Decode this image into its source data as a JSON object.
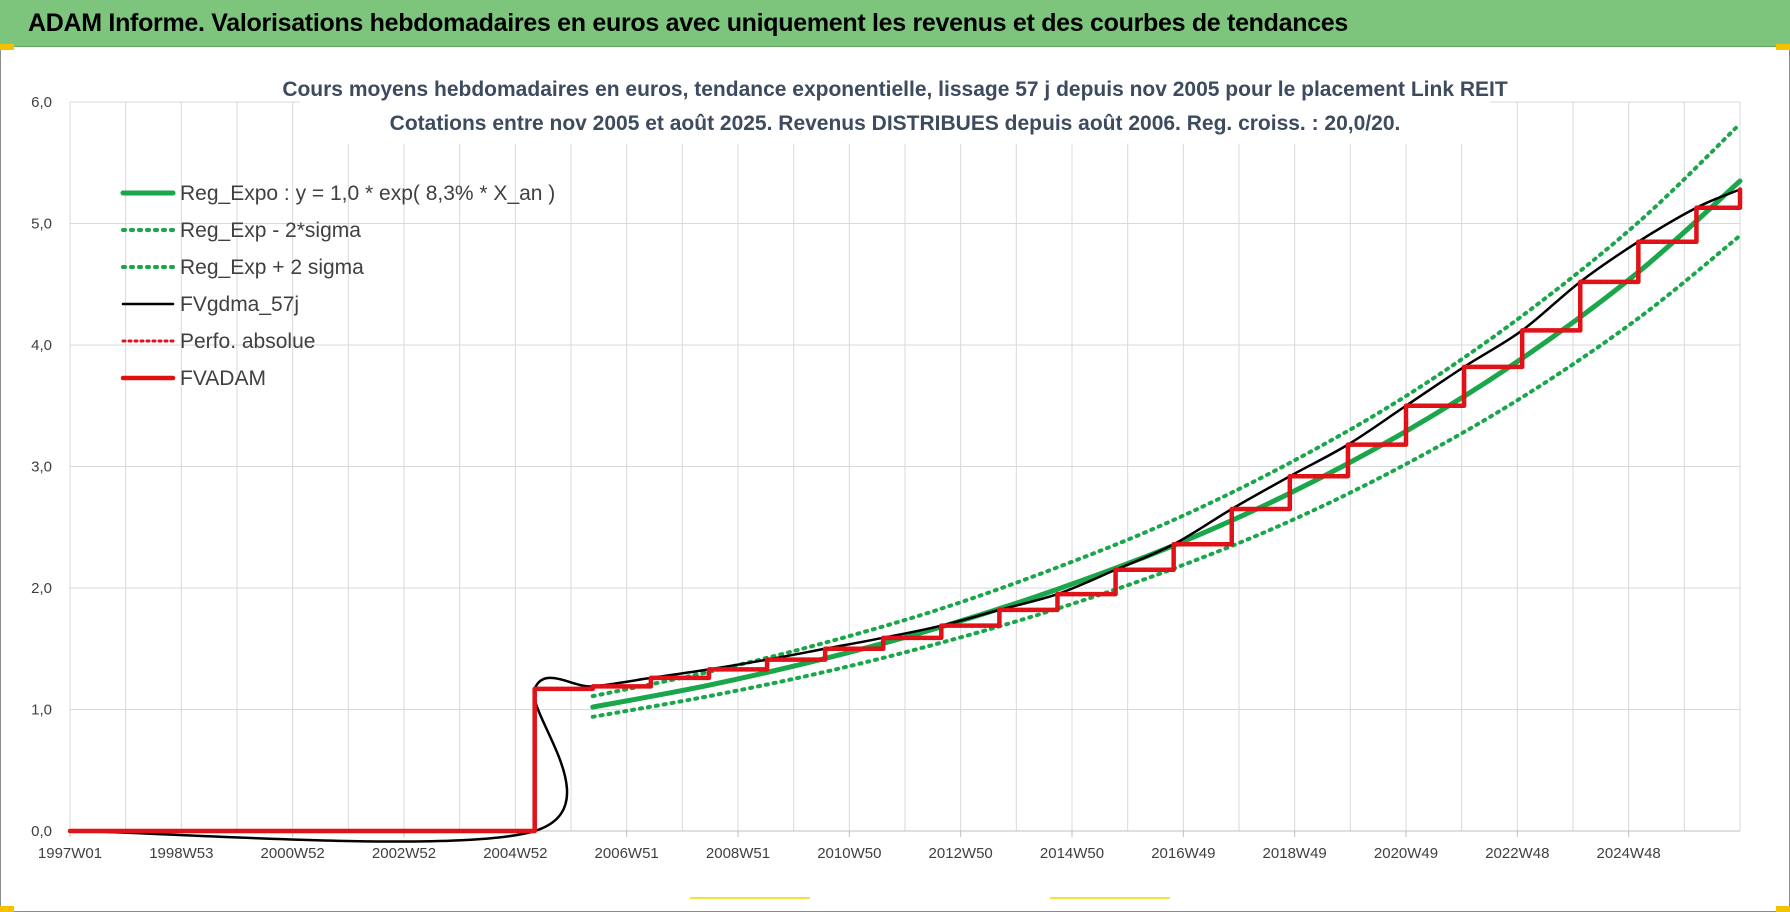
{
  "header": {
    "title": "ADAM Informe. Valorisations hebdomadaires en euros avec uniquement les revenus et des courbes de tendances"
  },
  "colors": {
    "banner": "#7dc47d",
    "trend_green": "#1aa64a",
    "fvgdma_black": "#000000",
    "perf_red": "#e0141e",
    "fvadam_red": "#e01010",
    "grid": "#d9d9d9"
  },
  "chart_data": {
    "type": "line",
    "title": [
      "Cours moyens hebdomadaires en euros, tendance exponentielle, lissage 57 j depuis nov 2005  pour le placement Link REIT",
      "Cotations entre nov 2005 et août 2025.  Revenus DISTRIBUES depuis août 2006. Reg.  croiss. : 20,0/20."
    ],
    "xlabel": "",
    "ylabel": "",
    "x_tick_labels": [
      "1997W01",
      "1998W53",
      "2000W52",
      "2002W52",
      "2004W52",
      "2006W51",
      "2008W51",
      "2010W50",
      "2012W50",
      "2014W50",
      "2016W49",
      "2018W49",
      "2020W49",
      "2022W48",
      "2024W48"
    ],
    "y_tick_labels": [
      "0,0",
      "1,0",
      "2,0",
      "3,0",
      "4,0",
      "5,0",
      "6,0"
    ],
    "x_unit": "year",
    "xlim": [
      1997.0,
      2025.75
    ],
    "ylim": [
      0,
      6
    ],
    "grid": true,
    "legend_position": "top-left",
    "legend": [
      {
        "label": "Reg_Expo : y = 1,0 * exp( 8,3% *  X_an )",
        "style": "solid",
        "color": "#1aa64a"
      },
      {
        "label": "Reg_Exp - 2*sigma",
        "style": "dotted",
        "color": "#1aa64a"
      },
      {
        "label": "Reg_Exp + 2 sigma",
        "style": "dotted",
        "color": "#1aa64a"
      },
      {
        "label": "FVgdma_57j",
        "style": "solid",
        "color": "#000000"
      },
      {
        "label": "Perfo. absolue",
        "style": "dotted",
        "color": "#e0141e"
      },
      {
        "label": "FVADAM",
        "style": "solid-thick",
        "color": "#e01010"
      }
    ],
    "series": [
      {
        "name": "Reg_Expo : y = 1,0 * exp( 8,3% *  X_an )",
        "x": [
          2006.0,
          2008.0,
          2010.0,
          2012.0,
          2014.0,
          2016.0,
          2018.0,
          2020.0,
          2022.0,
          2024.0,
          2025.75
        ],
        "y": [
          1.02,
          1.2,
          1.42,
          1.68,
          1.99,
          2.35,
          2.78,
          3.29,
          3.89,
          4.6,
          5.35
        ]
      },
      {
        "name": "Reg_Exp - 2*sigma",
        "x": [
          2006.0,
          2008.0,
          2010.0,
          2012.0,
          2014.0,
          2016.0,
          2018.0,
          2020.0,
          2022.0,
          2024.0,
          2025.75
        ],
        "y": [
          0.94,
          1.11,
          1.31,
          1.55,
          1.83,
          2.16,
          2.55,
          3.02,
          3.57,
          4.22,
          4.9
        ]
      },
      {
        "name": "Reg_Exp + 2 sigma",
        "x": [
          2006.0,
          2008.0,
          2010.0,
          2012.0,
          2014.0,
          2016.0,
          2018.0,
          2020.0,
          2022.0,
          2024.0,
          2025.75
        ],
        "y": [
          1.11,
          1.31,
          1.55,
          1.83,
          2.17,
          2.56,
          3.03,
          3.58,
          4.24,
          5.01,
          5.82
        ]
      },
      {
        "name": "FVgdma_57j",
        "x": [
          1997.0,
          2005.0,
          2005.0,
          2006.0,
          2007.0,
          2008.0,
          2009.0,
          2010.0,
          2011.0,
          2012.0,
          2013.0,
          2014.0,
          2015.0,
          2016.0,
          2017.0,
          2018.0,
          2019.0,
          2020.0,
          2021.0,
          2022.0,
          2023.0,
          2024.0,
          2025.0,
          2025.75
        ],
        "y": [
          0.0,
          0.0,
          1.17,
          1.19,
          1.26,
          1.33,
          1.41,
          1.5,
          1.59,
          1.69,
          1.82,
          1.95,
          2.15,
          2.36,
          2.65,
          2.92,
          3.18,
          3.5,
          3.82,
          4.12,
          4.52,
          4.85,
          5.13,
          5.28
        ]
      },
      {
        "name": "Perfo. absolue",
        "x": [
          1997.0,
          2005.0,
          2005.0,
          2006.0,
          2007.0,
          2008.0,
          2009.0,
          2010.0,
          2011.0,
          2012.0,
          2013.0,
          2014.0,
          2015.0,
          2016.0,
          2017.0,
          2018.0,
          2019.0,
          2020.0,
          2021.0,
          2022.0,
          2023.0,
          2024.0,
          2025.0,
          2025.75
        ],
        "y": [
          0.0,
          0.0,
          1.17,
          1.19,
          1.26,
          1.33,
          1.41,
          1.5,
          1.59,
          1.69,
          1.82,
          1.95,
          2.15,
          2.36,
          2.65,
          2.92,
          3.18,
          3.5,
          3.82,
          4.12,
          4.52,
          4.85,
          5.13,
          5.28
        ]
      },
      {
        "name": "FVADAM",
        "x": [
          1997.0,
          2005.0,
          2005.0,
          2006.0,
          2007.0,
          2008.0,
          2009.0,
          2010.0,
          2011.0,
          2012.0,
          2013.0,
          2014.0,
          2015.0,
          2016.0,
          2017.0,
          2018.0,
          2019.0,
          2020.0,
          2021.0,
          2022.0,
          2023.0,
          2024.0,
          2025.0,
          2025.75
        ],
        "y": [
          0.0,
          0.0,
          1.17,
          1.19,
          1.26,
          1.33,
          1.41,
          1.5,
          1.59,
          1.69,
          1.82,
          1.95,
          2.15,
          2.36,
          2.65,
          2.92,
          3.18,
          3.5,
          3.82,
          4.12,
          4.52,
          4.85,
          5.13,
          5.28
        ]
      }
    ]
  }
}
